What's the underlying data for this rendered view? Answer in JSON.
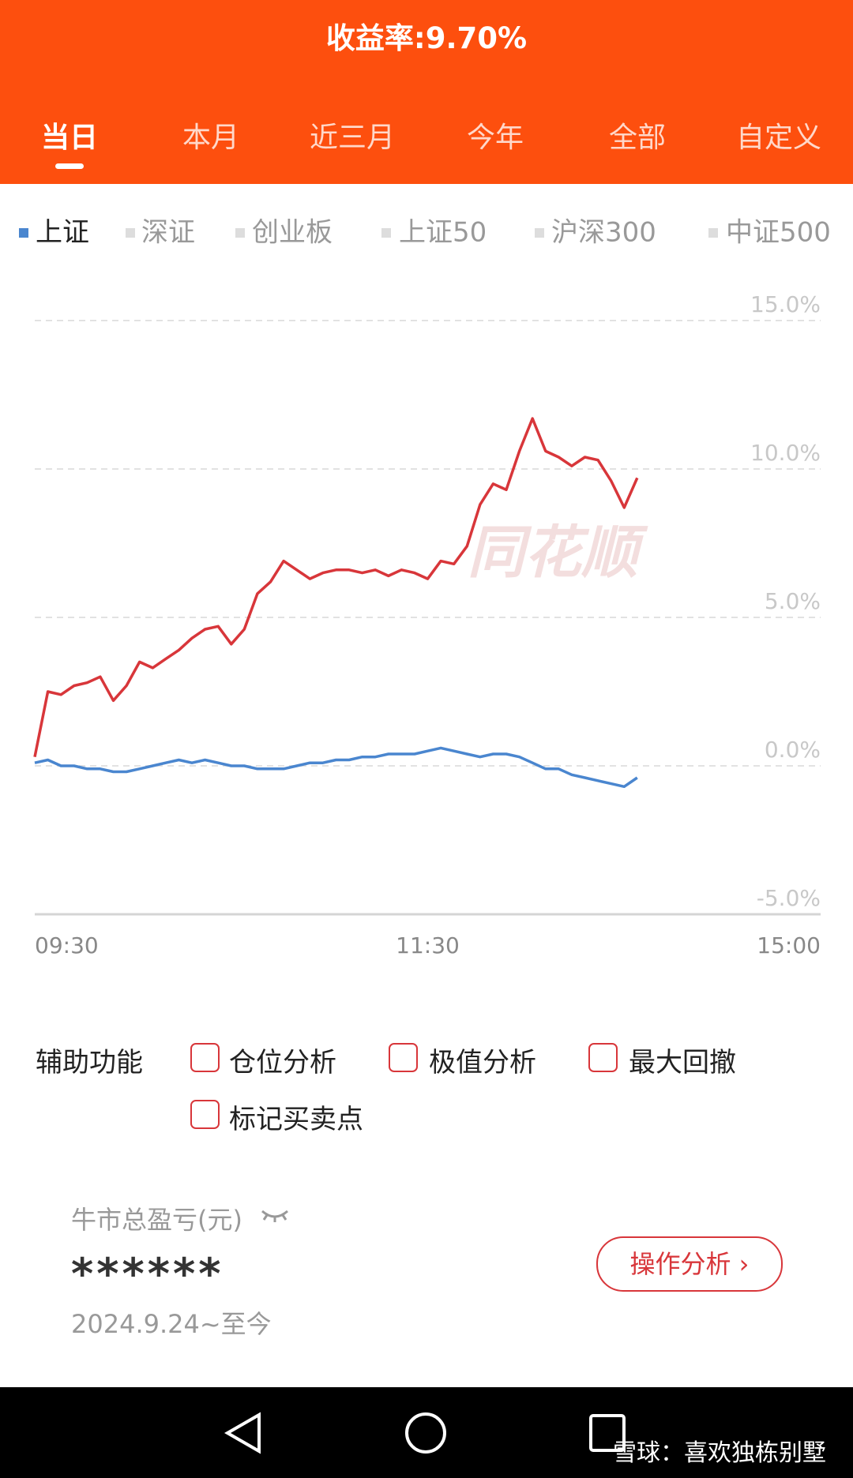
{
  "header": {
    "title": "收益率:9.70%",
    "tabs": [
      "当日",
      "本月",
      "近三月",
      "今年",
      "全部",
      "自定义"
    ]
  },
  "chart_data": {
    "type": "line",
    "other_indices": [
      "深证",
      "创业板",
      "上证50",
      "沪深300",
      "中证500"
    ],
    "watermark": "同花顺",
    "x": [
      0,
      4,
      8,
      12,
      16,
      20,
      24,
      28,
      32,
      36,
      40,
      44,
      48,
      52,
      56,
      60,
      64,
      68,
      72,
      76,
      80,
      84,
      88,
      92,
      96,
      100,
      104,
      108,
      112,
      116,
      120,
      124,
      128,
      132,
      136,
      140,
      144,
      148,
      152,
      156,
      160,
      164,
      168,
      172,
      176,
      180,
      184
    ],
    "xlim": [
      0,
      240
    ],
    "xticks": [
      {
        "value": 0,
        "label": "09:30"
      },
      {
        "value": 120,
        "label": "11:30"
      },
      {
        "value": 240,
        "label": "15:00"
      }
    ],
    "ylim": [
      -5,
      15
    ],
    "yticks": [
      {
        "value": -5,
        "label": "-5.0%"
      },
      {
        "value": 0,
        "label": "0.0%"
      },
      {
        "value": 5,
        "label": "5.0%"
      },
      {
        "value": 10,
        "label": "10.0%"
      },
      {
        "value": 15,
        "label": "15.0%"
      }
    ],
    "grid": true,
    "series": [
      {
        "color": "#d8363a",
        "values": [
          0.3,
          2.5,
          2.4,
          2.7,
          2.8,
          3.0,
          2.2,
          2.7,
          3.5,
          3.3,
          3.6,
          3.9,
          4.3,
          4.6,
          4.7,
          4.1,
          4.6,
          5.8,
          6.2,
          6.9,
          6.6,
          6.3,
          6.5,
          6.6,
          6.6,
          6.5,
          6.6,
          6.4,
          6.6,
          6.5,
          6.3,
          6.9,
          6.8,
          7.4,
          8.8,
          9.5,
          9.3,
          10.6,
          11.7,
          10.6,
          10.4,
          10.1,
          10.4,
          10.3,
          9.6,
          8.7,
          9.7
        ]
      },
      {
        "name": "上证",
        "color": "#4a86cf",
        "values": [
          0.1,
          0.2,
          0.0,
          0.0,
          -0.1,
          -0.1,
          -0.2,
          -0.2,
          -0.1,
          0.0,
          0.1,
          0.2,
          0.1,
          0.2,
          0.1,
          0.0,
          0.0,
          -0.1,
          -0.1,
          -0.1,
          0.0,
          0.1,
          0.1,
          0.2,
          0.2,
          0.3,
          0.3,
          0.4,
          0.4,
          0.4,
          0.5,
          0.6,
          0.5,
          0.4,
          0.3,
          0.4,
          0.4,
          0.3,
          0.1,
          -0.1,
          -0.1,
          -0.3,
          -0.4,
          -0.5,
          -0.6,
          -0.7,
          -0.4
        ]
      }
    ]
  },
  "aux": {
    "title": "辅助功能",
    "options": [
      "仓位分析",
      "极值分析",
      "最大回撤",
      "标记买卖点"
    ]
  },
  "card": {
    "label": "牛市总盈亏(元)",
    "value": "******",
    "period": "2024.9.24~至今",
    "button": "操作分析 ›"
  },
  "navbar": {
    "watermark": "雪球：喜欢独栋别墅"
  }
}
